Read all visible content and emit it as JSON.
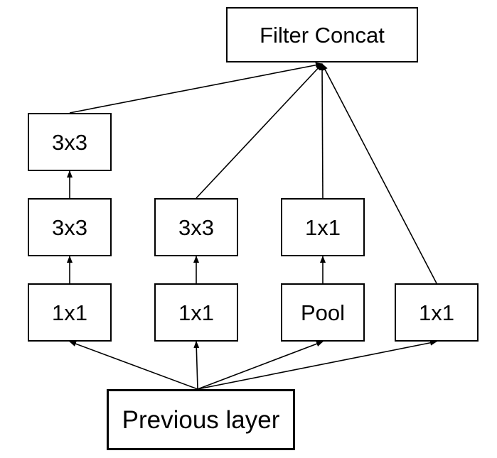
{
  "diagram": {
    "nodes": {
      "filter_concat": "Filter Concat",
      "previous_layer": "Previous layer",
      "b1_conv1x1": "1x1",
      "b1_conv3x3_a": "3x3",
      "b1_conv3x3_b": "3x3",
      "b2_conv1x1": "1x1",
      "b2_conv3x3": "3x3",
      "b3_pool": "Pool",
      "b3_conv1x1": "1x1",
      "b4_conv1x1": "1x1"
    },
    "edges": [
      [
        "previous_layer",
        "b1_conv1x1"
      ],
      [
        "previous_layer",
        "b2_conv1x1"
      ],
      [
        "previous_layer",
        "b3_pool"
      ],
      [
        "previous_layer",
        "b4_conv1x1"
      ],
      [
        "b1_conv1x1",
        "b1_conv3x3_a"
      ],
      [
        "b1_conv3x3_a",
        "b1_conv3x3_b"
      ],
      [
        "b2_conv1x1",
        "b2_conv3x3"
      ],
      [
        "b3_pool",
        "b3_conv1x1"
      ],
      [
        "b1_conv3x3_b",
        "filter_concat"
      ],
      [
        "b2_conv3x3",
        "filter_concat"
      ],
      [
        "b3_conv1x1",
        "filter_concat"
      ],
      [
        "b4_conv1x1",
        "filter_concat"
      ]
    ]
  }
}
